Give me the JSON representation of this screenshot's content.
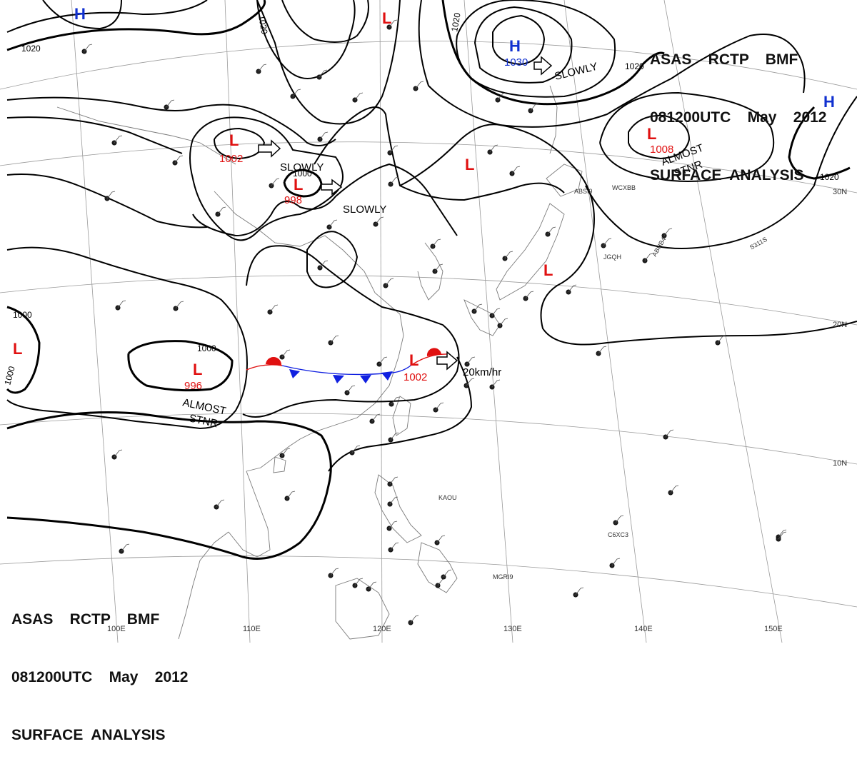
{
  "header": {
    "line1": "ASAS    RCTP    BMF",
    "line2": "081200UTC    May    2012",
    "line3": "SURFACE  ANALYSIS"
  },
  "colors": {
    "low": "#e01010",
    "high": "#1030d0",
    "isobar": "#000000",
    "grid": "#9a9a9a",
    "coast": "#7a7a7a",
    "cold_front": "#1020e0",
    "warm_front": "#e01010"
  },
  "longitudes": [
    "100E",
    "110E",
    "120E",
    "130E",
    "140E",
    "150E"
  ],
  "latitudes": [
    "30N",
    "20N",
    "10N"
  ],
  "isobar_labels": [
    "1020",
    "1020",
    "1020",
    "1020",
    "1020",
    "1000",
    "1000",
    "1000",
    "1000"
  ],
  "highs": [
    {
      "symbol": "H",
      "pressure": ""
    },
    {
      "symbol": "H",
      "pressure": "1030"
    },
    {
      "symbol": "H",
      "pressure": ""
    }
  ],
  "lows": [
    {
      "symbol": "L",
      "pressure": "1002"
    },
    {
      "symbol": "L",
      "pressure": "998"
    },
    {
      "symbol": "L",
      "pressure": ""
    },
    {
      "symbol": "L",
      "pressure": ""
    },
    {
      "symbol": "L",
      "pressure": "1008"
    },
    {
      "symbol": "L",
      "pressure": ""
    },
    {
      "symbol": "L",
      "pressure": "996"
    },
    {
      "symbol": "L",
      "pressure": ""
    },
    {
      "symbol": "L",
      "pressure": "1002"
    }
  ],
  "motion_labels": [
    "SLOWLY",
    "SLOWLY",
    "SLOWLY",
    "ALMOST",
    "STNR",
    "ALMOST",
    "STNR",
    "20km/hr"
  ],
  "station_labels": [
    "ABSI9",
    "WCXBB",
    "JGQH",
    "ABHB4",
    "S311S",
    "KAOU",
    "C6XC3",
    "MGRI9"
  ]
}
